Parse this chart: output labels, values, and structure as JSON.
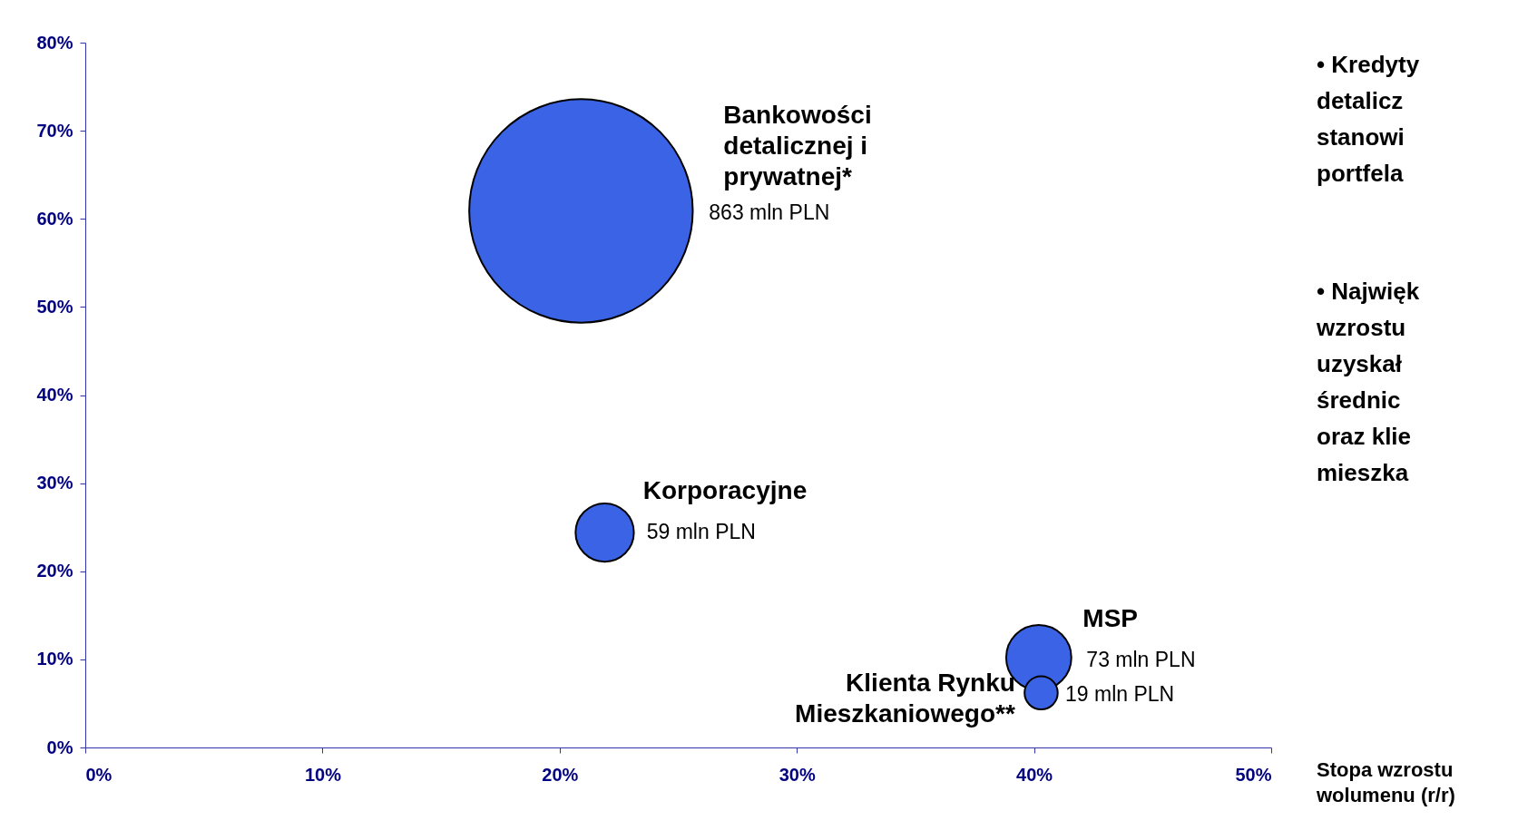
{
  "chart_data": {
    "type": "bubble",
    "xlabel": "Stopa wzrostu\nwolumenu (r/r)",
    "series": [
      {
        "name": "Bankowości\ndetalicznej i\nprywatnej*",
        "color": "#3a63e6",
        "x": [
          20.9
        ],
        "values": [
          60.9
        ],
        "sizes": [
          1
        ]
      },
      {
        "name": "Korporacyjne",
        "color": "#3a63e6",
        "x": [
          21.9
        ],
        "values": [
          24.4
        ],
        "sizes": [
          0.068
        ]
      },
      {
        "name": "MSP",
        "color": "#3a63e6",
        "x": [
          40.2
        ],
        "values": [
          10.2
        ],
        "sizes": [
          0.085
        ]
      },
      {
        "name": "Klienta Rynku\nMieszkaniowego**",
        "color": "#3a63e6",
        "x": [
          40.3
        ],
        "values": [
          6.2
        ],
        "sizes": [
          0.022
        ]
      }
    ],
    "annotations": [
      "863 mln PLN",
      "59 mln PLN",
      "73 mln PLN",
      "19 mln PLN",
      "•  Kredyty\n    detalicz\n    stanowi\n    portfela",
      "•  Najwięk\n    wzrostu\n    uzyskał\n    średnic\n    oraz klie\n    mieszka"
    ],
    "xlim": [
      0,
      50
    ],
    "xticks": [
      {
        "value": 0,
        "label": "0%"
      },
      {
        "value": 10,
        "label": "10%"
      },
      {
        "value": 20,
        "label": "20%"
      },
      {
        "value": 30,
        "label": "30%"
      },
      {
        "value": 40,
        "label": "40%"
      },
      {
        "value": 50,
        "label": "50%"
      }
    ],
    "ylim": [
      0,
      80
    ],
    "yticks": [
      {
        "value": 0,
        "label": "0%"
      },
      {
        "value": 10,
        "label": "10%"
      },
      {
        "value": 20,
        "label": "20%"
      },
      {
        "value": 30,
        "label": "30%"
      },
      {
        "value": 40,
        "label": "40%"
      },
      {
        "value": 50,
        "label": "50%"
      },
      {
        "value": 60,
        "label": "60%"
      },
      {
        "value": 70,
        "label": "70%"
      },
      {
        "value": 80,
        "label": "80%"
      }
    ],
    "grid": false,
    "marker": "circle"
  }
}
